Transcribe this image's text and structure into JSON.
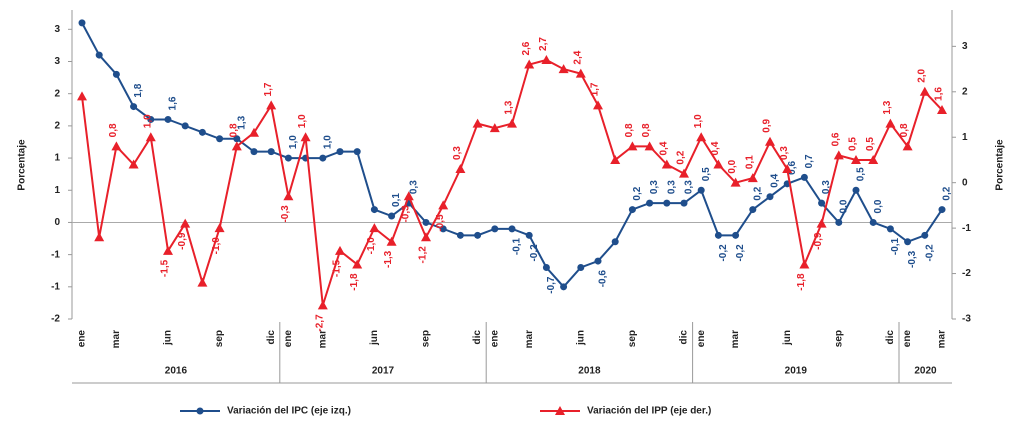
{
  "chart_data": {
    "type": "line",
    "ylabel": "Porcentaje",
    "y2label": "Porcentaje",
    "categories": [
      "ene",
      null,
      "mar",
      null,
      null,
      "jun",
      null,
      null,
      "sep",
      null,
      null,
      "dic",
      "ene",
      null,
      "mar",
      null,
      null,
      "jun",
      null,
      null,
      "sep",
      null,
      null,
      "dic",
      "ene",
      null,
      "mar",
      null,
      null,
      "jun",
      null,
      null,
      "sep",
      null,
      null,
      "dic",
      "ene",
      null,
      "mar",
      null,
      null,
      "jun",
      null,
      null,
      "sep",
      null,
      null,
      "dic",
      "ene",
      null,
      "mar"
    ],
    "years": [
      "2016",
      "2017",
      "2018",
      "2019",
      "2020"
    ],
    "series": [
      {
        "name": "Variación del IPC (eje izq.)",
        "color": "#1f4e8c",
        "marker": "circle",
        "axis": "y",
        "values": [
          3.1,
          2.6,
          2.3,
          1.8,
          1.6,
          1.6,
          1.5,
          1.4,
          1.3,
          1.3,
          1.1,
          1.1,
          1.0,
          1.0,
          1.0,
          1.1,
          1.1,
          0.2,
          0.1,
          0.3,
          0.0,
          -0.1,
          -0.2,
          -0.2,
          -0.1,
          -0.1,
          -0.2,
          -0.7,
          -1.0,
          -0.7,
          -0.6,
          -0.3,
          0.2,
          0.3,
          0.3,
          0.3,
          0.5,
          -0.2,
          -0.2,
          0.2,
          0.4,
          0.6,
          0.7,
          0.3,
          0.0,
          0.5,
          0.0,
          -0.1,
          -0.3,
          -0.2,
          0.2
        ],
        "value_labels": [
          null,
          null,
          null,
          "1,8",
          null,
          "1,6",
          null,
          null,
          null,
          "1,3",
          null,
          null,
          "1,0",
          null,
          "1,0",
          null,
          null,
          null,
          "0,1",
          "0,3",
          null,
          null,
          null,
          null,
          null,
          "-0,1",
          "-0,2",
          "-0,7",
          null,
          null,
          "-0,6",
          null,
          "0,2",
          "0,3",
          "0,3",
          "0,3",
          "0,5",
          "-0,2",
          "-0,2",
          "0,2",
          "0,4",
          "0,6",
          "0,7",
          "0,3",
          "0,0",
          "0,5",
          "0,0",
          "-0,1",
          "-0,3",
          "-0,2",
          "0,2"
        ]
      },
      {
        "name": "Variación del IPP (eje der.)",
        "color": "#e8202a",
        "marker": "triangle",
        "axis": "y2",
        "values": [
          1.9,
          -1.2,
          0.8,
          0.4,
          1.0,
          -1.5,
          -0.9,
          -2.2,
          -1.0,
          0.8,
          1.1,
          1.7,
          -0.3,
          1.0,
          -2.7,
          -1.5,
          -1.8,
          -1.0,
          -1.3,
          -0.3,
          -1.2,
          -0.5,
          0.3,
          1.3,
          1.2,
          1.3,
          2.6,
          2.7,
          2.5,
          2.4,
          1.7,
          0.5,
          0.8,
          0.8,
          0.4,
          0.2,
          1.0,
          0.4,
          0.0,
          0.1,
          0.9,
          0.3,
          -1.8,
          -0.9,
          0.6,
          0.5,
          0.5,
          1.3,
          0.8,
          2.0,
          1.6
        ],
        "value_labels": [
          null,
          null,
          "0,8",
          null,
          "1,0",
          "-1,5",
          "-0,9",
          null,
          "-1,0",
          "0,8",
          null,
          "1,7",
          "-0,3",
          "1,0",
          "-2,7",
          "-1,5",
          "-1,8",
          "-1,0",
          "-1,3",
          "-0,3",
          "-1,2",
          "-0,5",
          "0,3",
          null,
          null,
          "1,3",
          "2,6",
          "2,7",
          null,
          "2,4",
          "1,7",
          null,
          "0,8",
          "0,8",
          "0,4",
          "0,2",
          "1,0",
          "0,4",
          "0,0",
          "0,1",
          "0,9",
          "0,3",
          "-1,8",
          "-0,9",
          "0,6",
          "0,5",
          "0,5",
          "1,3",
          "0,8",
          "2,0",
          "1,6"
        ]
      }
    ],
    "ylim": [
      -1.5,
      3.3
    ],
    "yticks": [
      {
        "value": -1.5,
        "label": "-2"
      },
      -1,
      {
        "value": -0.5,
        "label": "-1"
      },
      0,
      {
        "value": 0.5,
        "label": "1"
      },
      1,
      {
        "value": 1.5,
        "label": "2"
      },
      2,
      {
        "value": 2.5,
        "label": "3"
      },
      3
    ],
    "y2lim": [
      -3,
      3.8
    ],
    "y2ticks": [
      -3,
      -2,
      -1,
      0,
      1,
      2,
      3
    ],
    "grid": false,
    "legend": "bottom"
  }
}
